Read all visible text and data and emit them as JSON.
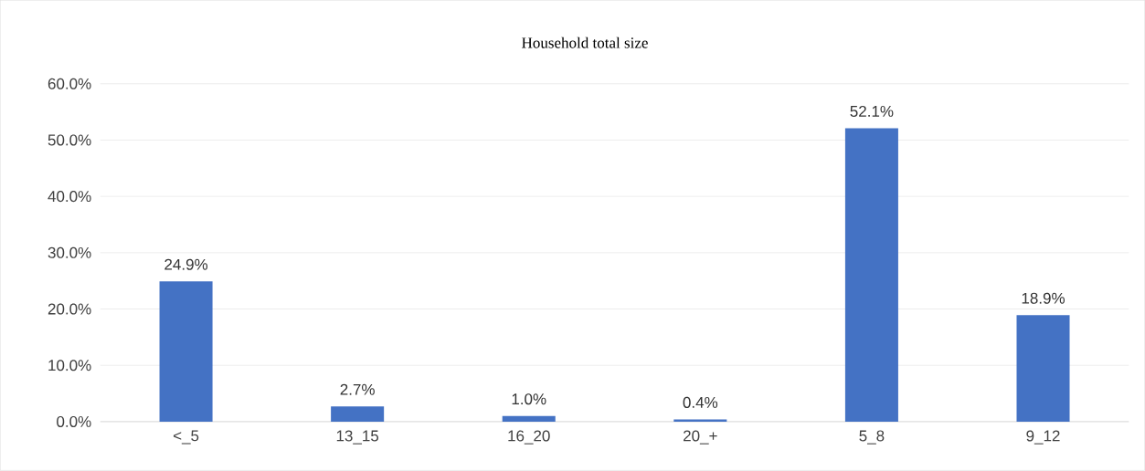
{
  "chart_data": {
    "type": "bar",
    "title": "Household total size",
    "categories": [
      "<_5",
      "13_15",
      "16_20",
      "20_+",
      "5_8",
      "9_12"
    ],
    "values": [
      24.9,
      2.7,
      1.0,
      0.4,
      52.1,
      18.9
    ],
    "value_labels": [
      "24.9%",
      "2.7%",
      "1.0%",
      "0.4%",
      "52.1%",
      "18.9%"
    ],
    "color": "#4472c4",
    "ylim": [
      0,
      60
    ],
    "yticks": [
      {
        "value": 0,
        "label": "0.0%"
      },
      {
        "value": 10,
        "label": "10.0%"
      },
      {
        "value": 20,
        "label": "20.0%"
      },
      {
        "value": 30,
        "label": "30.0%"
      },
      {
        "value": 40,
        "label": "40.0%"
      },
      {
        "value": 50,
        "label": "50.0%"
      },
      {
        "value": 60,
        "label": "60.0%"
      }
    ],
    "grid": "y"
  }
}
